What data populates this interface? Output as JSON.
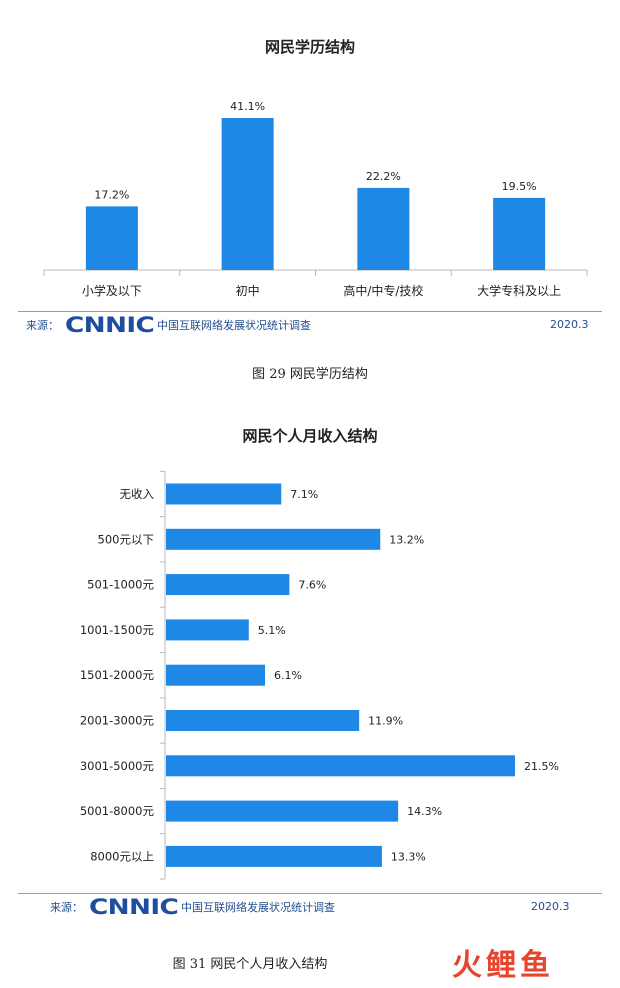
{
  "charts": {
    "chart1": {
      "source_label": "来源：",
      "source_logo": "CNNIC",
      "source_org": "中国互联网络发展状况统计调查",
      "date": "2020.3",
      "figure_caption": "图  29    网民学历结构"
    },
    "chart2": {
      "source_label": "来源：",
      "source_logo": "CNNIC",
      "source_org": "中国互联网络发展状况统计调查",
      "date": "2020.3",
      "figure_caption": "图  31    网民个人月收入结构"
    }
  },
  "watermark": "火鲤鱼",
  "colors": {
    "bar": "#1f87e5",
    "axis": "#b8b8b8",
    "source_text": "#1f4e8c"
  },
  "chart_data": [
    {
      "type": "bar",
      "orientation": "vertical",
      "title": "网民学历结构",
      "categories": [
        "小学及以下",
        "初中",
        "高中/中专/技校",
        "大学专科及以上"
      ],
      "values": [
        17.2,
        41.1,
        22.2,
        19.5
      ],
      "value_labels": [
        "17.2%",
        "41.1%",
        "22.2%",
        "19.5%"
      ],
      "unit": "%",
      "ylim": [
        0,
        41.1
      ],
      "grid": false,
      "legend": "none"
    },
    {
      "type": "bar",
      "orientation": "horizontal",
      "title": "网民个人月收入结构",
      "categories": [
        "无收入",
        "500元以下",
        "501-1000元",
        "1001-1500元",
        "1501-2000元",
        "2001-3000元",
        "3001-5000元",
        "5001-8000元",
        "8000元以上"
      ],
      "values": [
        7.1,
        13.2,
        7.6,
        5.1,
        6.1,
        11.9,
        21.5,
        14.3,
        13.3
      ],
      "value_labels": [
        "7.1%",
        "13.2%",
        "7.6%",
        "5.1%",
        "6.1%",
        "11.9%",
        "21.5%",
        "14.3%",
        "13.3%"
      ],
      "unit": "%",
      "xlim": [
        0,
        21.5
      ],
      "grid": false,
      "legend": "none"
    }
  ]
}
